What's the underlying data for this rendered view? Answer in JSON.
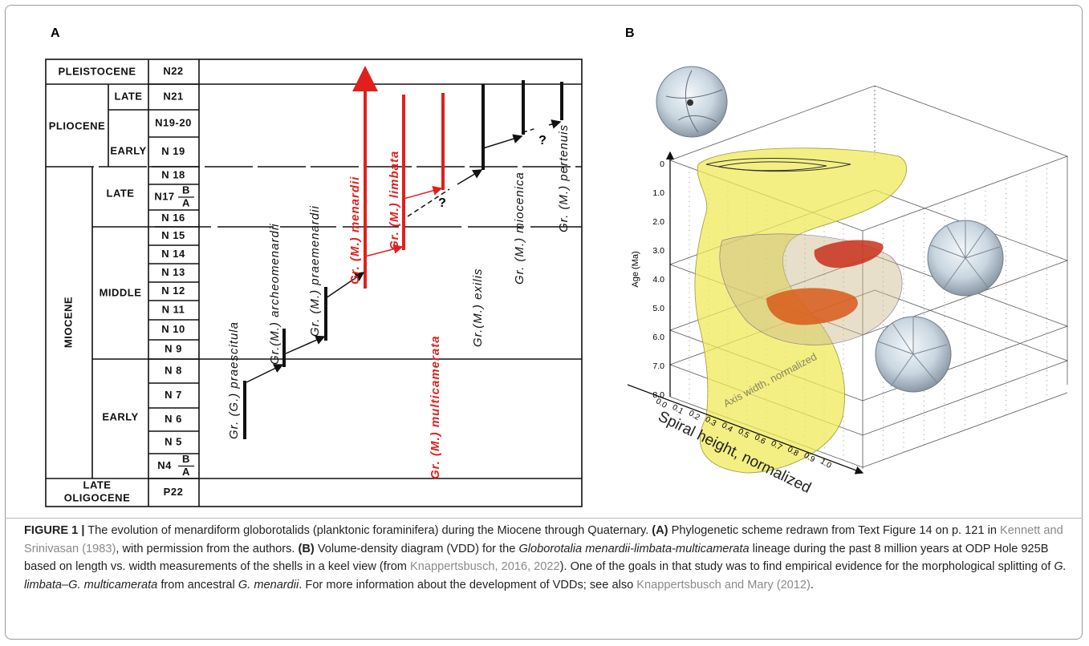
{
  "panel_a": {
    "label": "A",
    "epochs": {
      "pleistocene": "PLEISTOCENE",
      "pliocene": "PLIOCENE",
      "pliocene_late": "LATE",
      "pliocene_early": "EARLY",
      "miocene": "MIOCENE",
      "miocene_late": "LATE",
      "miocene_middle": "MIDDLE",
      "miocene_early": "EARLY",
      "oligocene_1": "LATE",
      "oligocene_2": "OLIGOCENE"
    },
    "zones": [
      "N22",
      "N21",
      "N19-20",
      "N 19",
      "N 18",
      {
        "label": "N17",
        "upper": "B",
        "lower": "A"
      },
      "N 16",
      "N 15",
      "N 14",
      "N 13",
      "N 12",
      "N 11",
      "N 10",
      "N 9",
      "N 8",
      "N 7",
      "N 6",
      "N 5",
      {
        "label": "N4",
        "upper": "B",
        "lower": "A"
      },
      "P22"
    ],
    "taxa": [
      {
        "name": "Gr. (G.) praescitula",
        "color": "#111111"
      },
      {
        "name": "Gr.(M.) archeomenardii",
        "color": "#111111"
      },
      {
        "name": "Gr. (M.) praemenardii",
        "color": "#111111"
      },
      {
        "name": "Gr. (M.) menardii",
        "color": "#e0201c"
      },
      {
        "name": "Gr. (M.) limbata",
        "color": "#e0201c"
      },
      {
        "name": "Gr. (M.) multicamerata",
        "color": "#e0201c"
      },
      {
        "name": "Gr.(M.) exilis",
        "color": "#111111"
      },
      {
        "name": "Gr. (M.) miocenica",
        "color": "#111111"
      },
      {
        "name": "Gr. (M.) pertenuis",
        "color": "#111111"
      }
    ],
    "question_marks": [
      "?",
      "?"
    ]
  },
  "panel_b": {
    "label": "B",
    "age_axis_title": "Age (Ma)",
    "age_ticks": [
      "0",
      "1.0",
      "2.0",
      "3.0",
      "4.0",
      "5.0",
      "6.0",
      "7.0",
      "8.0"
    ],
    "spiral_axis_title": "Spiral height, normalized",
    "spiral_ticks": [
      "0.0",
      "0.1",
      "0.2",
      "0.3",
      "0.4",
      "0.5",
      "0.6",
      "0.7",
      "0.8",
      "0.9",
      "1.0"
    ],
    "width_axis_title": "Axis width, normalized"
  },
  "caption": [
    "FIGURE 1 |",
    " The evolution of menardiform globorotalids (planktonic foraminifera) during the Miocene through Quaternary. ",
    "(A)",
    " Phylogenetic scheme redrawn from Text Figure 14 on p. 121 in ",
    "Kennett and Srinivasan (1983)",
    ", with permission from the authors. ",
    "(B)",
    " Volume-density diagram (VDD) for the ",
    "Globorotalia menardii-limbata-multicamerata",
    " lineage during the past 8 million years at ODP Hole 925B based on length vs. width measurements of the shells in a keel view (from ",
    "Knappertsbusch, 2016, 2022",
    "). One of the goals in that study was to find empirical evidence for the morphological splitting of ",
    "G. limbata–G. multicamerata",
    " from ancestral ",
    "G. menardii",
    ". For more information about the development of VDDs; see also ",
    "Knappertsbusch and Mary (2012)",
    "."
  ]
}
